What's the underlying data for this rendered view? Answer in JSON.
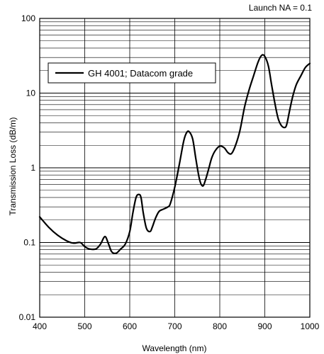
{
  "chart_data": {
    "type": "line",
    "xlabel": "Wavelength (nm)",
    "ylabel": "Transmission Loss (dB/m)",
    "annotation": "Launch NA = 0.1",
    "xlim": [
      400,
      1000
    ],
    "ylim": [
      0.01,
      100
    ],
    "yscale": "log",
    "grid": true,
    "legend_position": "top-left",
    "x_ticks": [
      400,
      500,
      600,
      700,
      800,
      900,
      1000
    ],
    "x_tick_labels": [
      "400",
      "500",
      "600",
      "700",
      "800",
      "900",
      "1000"
    ],
    "y_ticks": [
      0.01,
      0.1,
      1,
      10,
      100
    ],
    "y_tick_labels": [
      "0.01",
      "0.1",
      "1",
      "10",
      "100"
    ],
    "series": [
      {
        "name": "GH 4001; Datacom grade",
        "color": "#000000",
        "x": [
          400,
          420,
          440,
          460,
          475,
          490,
          500,
          510,
          525,
          535,
          545,
          553,
          560,
          570,
          580,
          590,
          600,
          607,
          614,
          620,
          625,
          630,
          637,
          645,
          650,
          657,
          665,
          675,
          685,
          690,
          700,
          710,
          720,
          727,
          733,
          740,
          747,
          755,
          762,
          768,
          775,
          782,
          790,
          800,
          810,
          818,
          826,
          835,
          845,
          855,
          865,
          875,
          885,
          893,
          900,
          908,
          915,
          923,
          930,
          938,
          946,
          950,
          955,
          962,
          970,
          980,
          990,
          1000
        ],
        "y": [
          0.22,
          0.16,
          0.125,
          0.105,
          0.098,
          0.1,
          0.088,
          0.082,
          0.082,
          0.095,
          0.12,
          0.095,
          0.075,
          0.072,
          0.082,
          0.095,
          0.14,
          0.25,
          0.4,
          0.44,
          0.4,
          0.25,
          0.155,
          0.14,
          0.16,
          0.21,
          0.26,
          0.28,
          0.3,
          0.33,
          0.55,
          1.1,
          2.3,
          3.0,
          3.0,
          2.4,
          1.3,
          0.7,
          0.57,
          0.68,
          0.95,
          1.35,
          1.7,
          1.95,
          1.85,
          1.6,
          1.55,
          2.0,
          3.2,
          6.5,
          11,
          17,
          26,
          32,
          31,
          23,
          13,
          7.0,
          4.5,
          3.6,
          3.5,
          4.1,
          5.8,
          9.0,
          13,
          17,
          22,
          25
        ]
      }
    ]
  }
}
